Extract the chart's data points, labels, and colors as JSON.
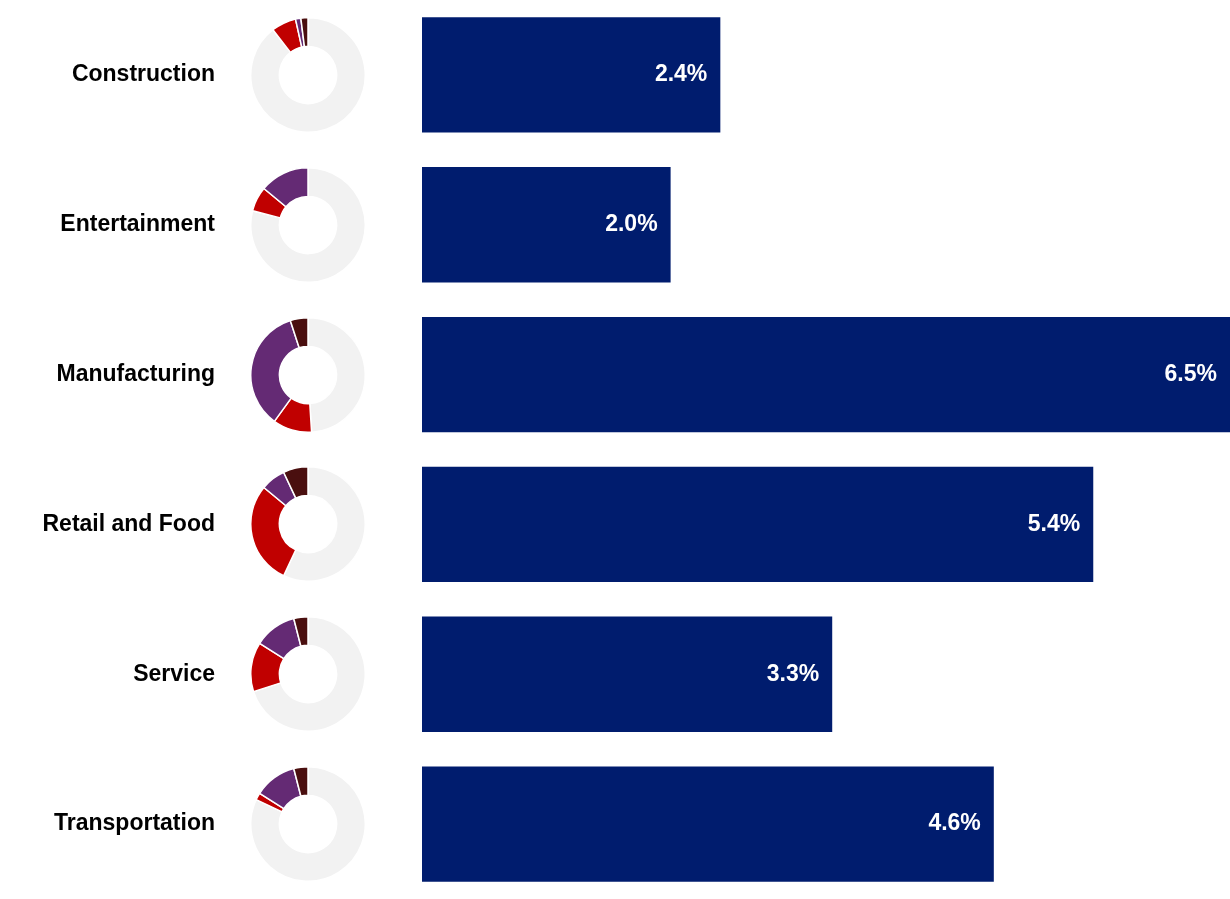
{
  "chart_data": [
    {
      "type": "bar",
      "orientation": "horizontal",
      "categories": [
        "Construction",
        "Entertainment",
        "Manufacturing",
        "Retail and Food",
        "Service",
        "Transportation"
      ],
      "values": [
        2.4,
        2.0,
        6.5,
        5.4,
        3.3,
        4.6
      ],
      "value_labels": [
        "2.4%",
        "2.0%",
        "6.5%",
        "5.4%",
        "3.3%",
        "4.6%"
      ],
      "color": "#001c6e",
      "grid": false,
      "legend": false,
      "tick_labels": "y"
    },
    {
      "type": "donut",
      "categories": [
        null,
        null,
        null,
        null
      ],
      "values": [
        89.5,
        7,
        1.5,
        2
      ],
      "colors": [
        "#f2f2f2",
        "#c00000",
        "#642a74",
        "#4a0f0f"
      ]
    },
    {
      "type": "donut",
      "categories": [
        null,
        null,
        null,
        null
      ],
      "values": [
        79,
        7,
        14,
        0
      ],
      "colors": [
        "#f2f2f2",
        "#c00000",
        "#642a74",
        "#4a0f0f"
      ]
    },
    {
      "type": "donut",
      "categories": [
        null,
        null,
        null,
        null
      ],
      "values": [
        49,
        11,
        35,
        5
      ],
      "colors": [
        "#f2f2f2",
        "#c00000",
        "#642a74",
        "#4a0f0f"
      ]
    },
    {
      "type": "donut",
      "categories": [
        null,
        null,
        null,
        null
      ],
      "values": [
        57,
        29,
        7,
        7
      ],
      "colors": [
        "#f2f2f2",
        "#c00000",
        "#642a74",
        "#4a0f0f"
      ]
    },
    {
      "type": "donut",
      "categories": [
        null,
        null,
        null,
        null
      ],
      "values": [
        70,
        14,
        12,
        4
      ],
      "colors": [
        "#f2f2f2",
        "#c00000",
        "#642a74",
        "#4a0f0f"
      ]
    },
    {
      "type": "donut",
      "categories": [
        null,
        null,
        null,
        null
      ],
      "values": [
        82,
        2,
        12,
        4
      ],
      "colors": [
        "#f2f2f2",
        "#c00000",
        "#642a74",
        "#4a0f0f"
      ]
    }
  ]
}
